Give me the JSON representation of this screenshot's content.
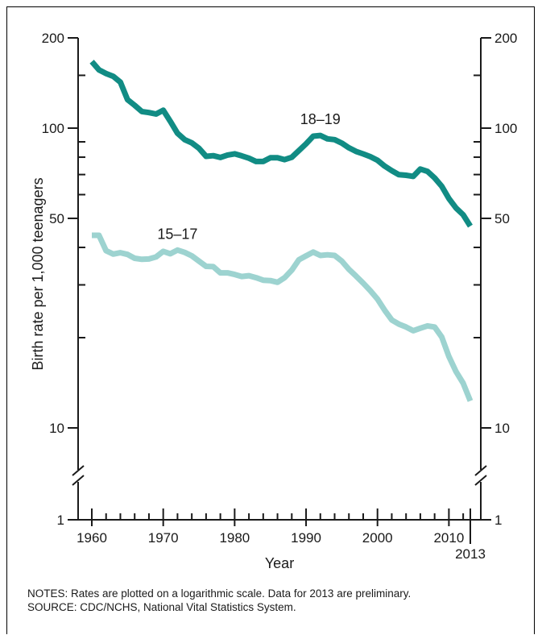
{
  "chart_data": {
    "type": "line",
    "ylabel": "Birth rate per 1,000 teenagers",
    "xlabel": "Year",
    "y_scale": "log",
    "ylim": [
      1,
      200
    ],
    "xlim": [
      1960,
      2013
    ],
    "y_ticks_major": [
      "200",
      "100",
      "50",
      "10",
      "1"
    ],
    "x_ticks": [
      "1960",
      "1970",
      "1980",
      "1990",
      "2000",
      "2010",
      "2013"
    ],
    "grid": false,
    "series": [
      {
        "name": "18–19",
        "color": "#118c84",
        "x": [
          1960,
          1961,
          1962,
          1963,
          1964,
          1965,
          1966,
          1967,
          1968,
          1969,
          1970,
          1971,
          1972,
          1973,
          1974,
          1975,
          1976,
          1977,
          1978,
          1979,
          1980,
          1981,
          1982,
          1983,
          1984,
          1985,
          1986,
          1987,
          1988,
          1989,
          1990,
          1991,
          1992,
          1993,
          1994,
          1995,
          1996,
          1997,
          1998,
          1999,
          2000,
          2001,
          2002,
          2003,
          2004,
          2005,
          2006,
          2007,
          2008,
          2009,
          2010,
          2011,
          2012,
          2013
        ],
        "y": [
          166.7,
          156.4,
          152.1,
          148.9,
          142.3,
          124.5,
          119.1,
          113.6,
          112.7,
          111.4,
          114.7,
          105.3,
          96.1,
          91.5,
          89.3,
          85.7,
          80.5,
          80.9,
          79.8,
          81.3,
          82.1,
          80.8,
          79.4,
          77.4,
          77.4,
          79.6,
          79.6,
          78.5,
          79.9,
          84.2,
          88.6,
          94.0,
          94.5,
          92.1,
          91.5,
          89.1,
          86.0,
          83.6,
          82.0,
          80.3,
          78.1,
          74.7,
          72.1,
          69.9,
          69.6,
          69.0,
          73.0,
          71.7,
          68.2,
          64.0,
          58.2,
          54.1,
          51.4,
          47.1
        ]
      },
      {
        "name": "15–17",
        "color": "#9dd3d0",
        "x": [
          1960,
          1961,
          1962,
          1963,
          1964,
          1965,
          1966,
          1967,
          1968,
          1969,
          1970,
          1971,
          1972,
          1973,
          1974,
          1975,
          1976,
          1977,
          1978,
          1979,
          1980,
          1981,
          1982,
          1983,
          1984,
          1985,
          1986,
          1987,
          1988,
          1989,
          1990,
          1991,
          1992,
          1993,
          1994,
          1995,
          1996,
          1997,
          1998,
          1999,
          2000,
          2001,
          2002,
          2003,
          2004,
          2005,
          2006,
          2007,
          2008,
          2009,
          2010,
          2011,
          2012,
          2013
        ],
        "y": [
          43.9,
          43.9,
          39.0,
          38.0,
          38.4,
          37.9,
          36.8,
          36.5,
          36.6,
          37.2,
          38.8,
          38.1,
          39.2,
          38.5,
          37.5,
          36.0,
          34.6,
          34.5,
          32.9,
          32.9,
          32.5,
          32.0,
          32.2,
          31.7,
          31.1,
          31.0,
          30.6,
          31.7,
          33.6,
          36.4,
          37.5,
          38.6,
          37.6,
          37.8,
          37.6,
          36.0,
          33.8,
          32.1,
          30.4,
          28.7,
          26.9,
          24.7,
          22.9,
          22.2,
          21.7,
          21.1,
          21.5,
          21.9,
          21.7,
          20.1,
          17.3,
          15.4,
          14.1,
          12.3
        ]
      }
    ],
    "annotations": [
      "18–19",
      "15–17"
    ],
    "notes": "NOTES: Rates are plotted on a logarithmic scale. Data for 2013 are preliminary.",
    "source": "SOURCE: CDC/NCHS, National Vital Statistics System."
  }
}
